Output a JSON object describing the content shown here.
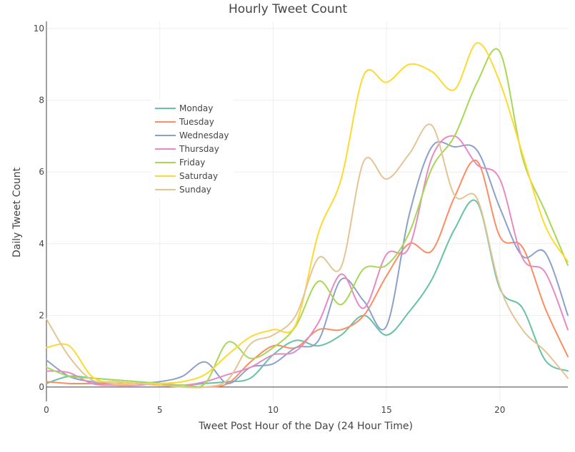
{
  "chart_data": {
    "type": "line",
    "title": "Hourly Tweet Count",
    "xlabel": "Tweet Post Hour of the Day (24 Hour Time)",
    "ylabel": "Daily Tweet Count",
    "xlim": [
      0,
      23
    ],
    "ylim": [
      -0.4,
      10.2
    ],
    "x_ticks": [
      0,
      5,
      10,
      15,
      20
    ],
    "y_ticks": [
      0,
      2,
      4,
      6,
      8,
      10
    ],
    "grid": true,
    "legend_position": "upper-left",
    "x": [
      0,
      1,
      2,
      3,
      4,
      5,
      6,
      7,
      8,
      9,
      10,
      11,
      12,
      13,
      14,
      15,
      16,
      17,
      18,
      19,
      20,
      21,
      22,
      23
    ],
    "series": [
      {
        "name": "Monday",
        "color": "#66c2a5",
        "values": [
          0.1,
          0.3,
          0.25,
          0.2,
          0.15,
          0.1,
          0.05,
          0.1,
          0.15,
          0.25,
          0.9,
          1.3,
          1.15,
          1.45,
          2.0,
          1.45,
          2.1,
          3.0,
          4.4,
          5.15,
          2.75,
          2.2,
          0.75,
          0.45
        ]
      },
      {
        "name": "Tuesday",
        "color": "#fc8d62",
        "values": [
          0.15,
          0.1,
          0.1,
          0.1,
          0.1,
          0.05,
          0.05,
          0.0,
          0.1,
          0.7,
          1.15,
          1.1,
          1.6,
          1.6,
          2.0,
          3.1,
          4.0,
          3.8,
          5.3,
          6.3,
          4.2,
          3.9,
          2.2,
          0.85
        ]
      },
      {
        "name": "Wednesday",
        "color": "#8da0cb",
        "values": [
          0.75,
          0.3,
          0.15,
          0.1,
          0.1,
          0.15,
          0.3,
          0.7,
          0.1,
          0.55,
          0.65,
          1.1,
          1.3,
          3.0,
          2.4,
          1.7,
          4.8,
          6.7,
          6.7,
          6.6,
          5.0,
          3.65,
          3.75,
          2.0
        ]
      },
      {
        "name": "Thursday",
        "color": "#e78ac3",
        "values": [
          0.45,
          0.4,
          0.1,
          0.05,
          0.05,
          0.1,
          0.05,
          0.15,
          0.35,
          0.55,
          0.9,
          1.0,
          1.8,
          3.15,
          2.2,
          3.7,
          3.9,
          6.4,
          7.0,
          6.2,
          5.8,
          3.6,
          3.2,
          1.6
        ]
      },
      {
        "name": "Friday",
        "color": "#a6d854",
        "values": [
          0.55,
          0.3,
          0.25,
          0.2,
          0.15,
          0.1,
          0.05,
          0.1,
          1.25,
          0.8,
          1.1,
          1.7,
          2.95,
          2.3,
          3.3,
          3.4,
          4.3,
          6.1,
          7.0,
          8.5,
          9.35,
          6.4,
          4.9,
          3.4
        ]
      },
      {
        "name": "Saturday",
        "color": "#ffd92f",
        "values": [
          1.1,
          1.15,
          0.3,
          0.1,
          0.1,
          0.1,
          0.15,
          0.35,
          0.9,
          1.4,
          1.6,
          1.75,
          4.3,
          5.8,
          8.7,
          8.5,
          9.0,
          8.8,
          8.3,
          9.6,
          8.5,
          6.5,
          4.5,
          3.5
        ]
      },
      {
        "name": "Sunday",
        "color": "#e5c494",
        "values": [
          1.9,
          0.85,
          0.2,
          0.15,
          0.1,
          0.05,
          0.0,
          0.0,
          0.2,
          1.2,
          1.45,
          2.0,
          3.6,
          3.35,
          6.3,
          5.8,
          6.5,
          7.3,
          5.35,
          5.25,
          2.8,
          1.6,
          1.0,
          0.25
        ]
      }
    ]
  }
}
